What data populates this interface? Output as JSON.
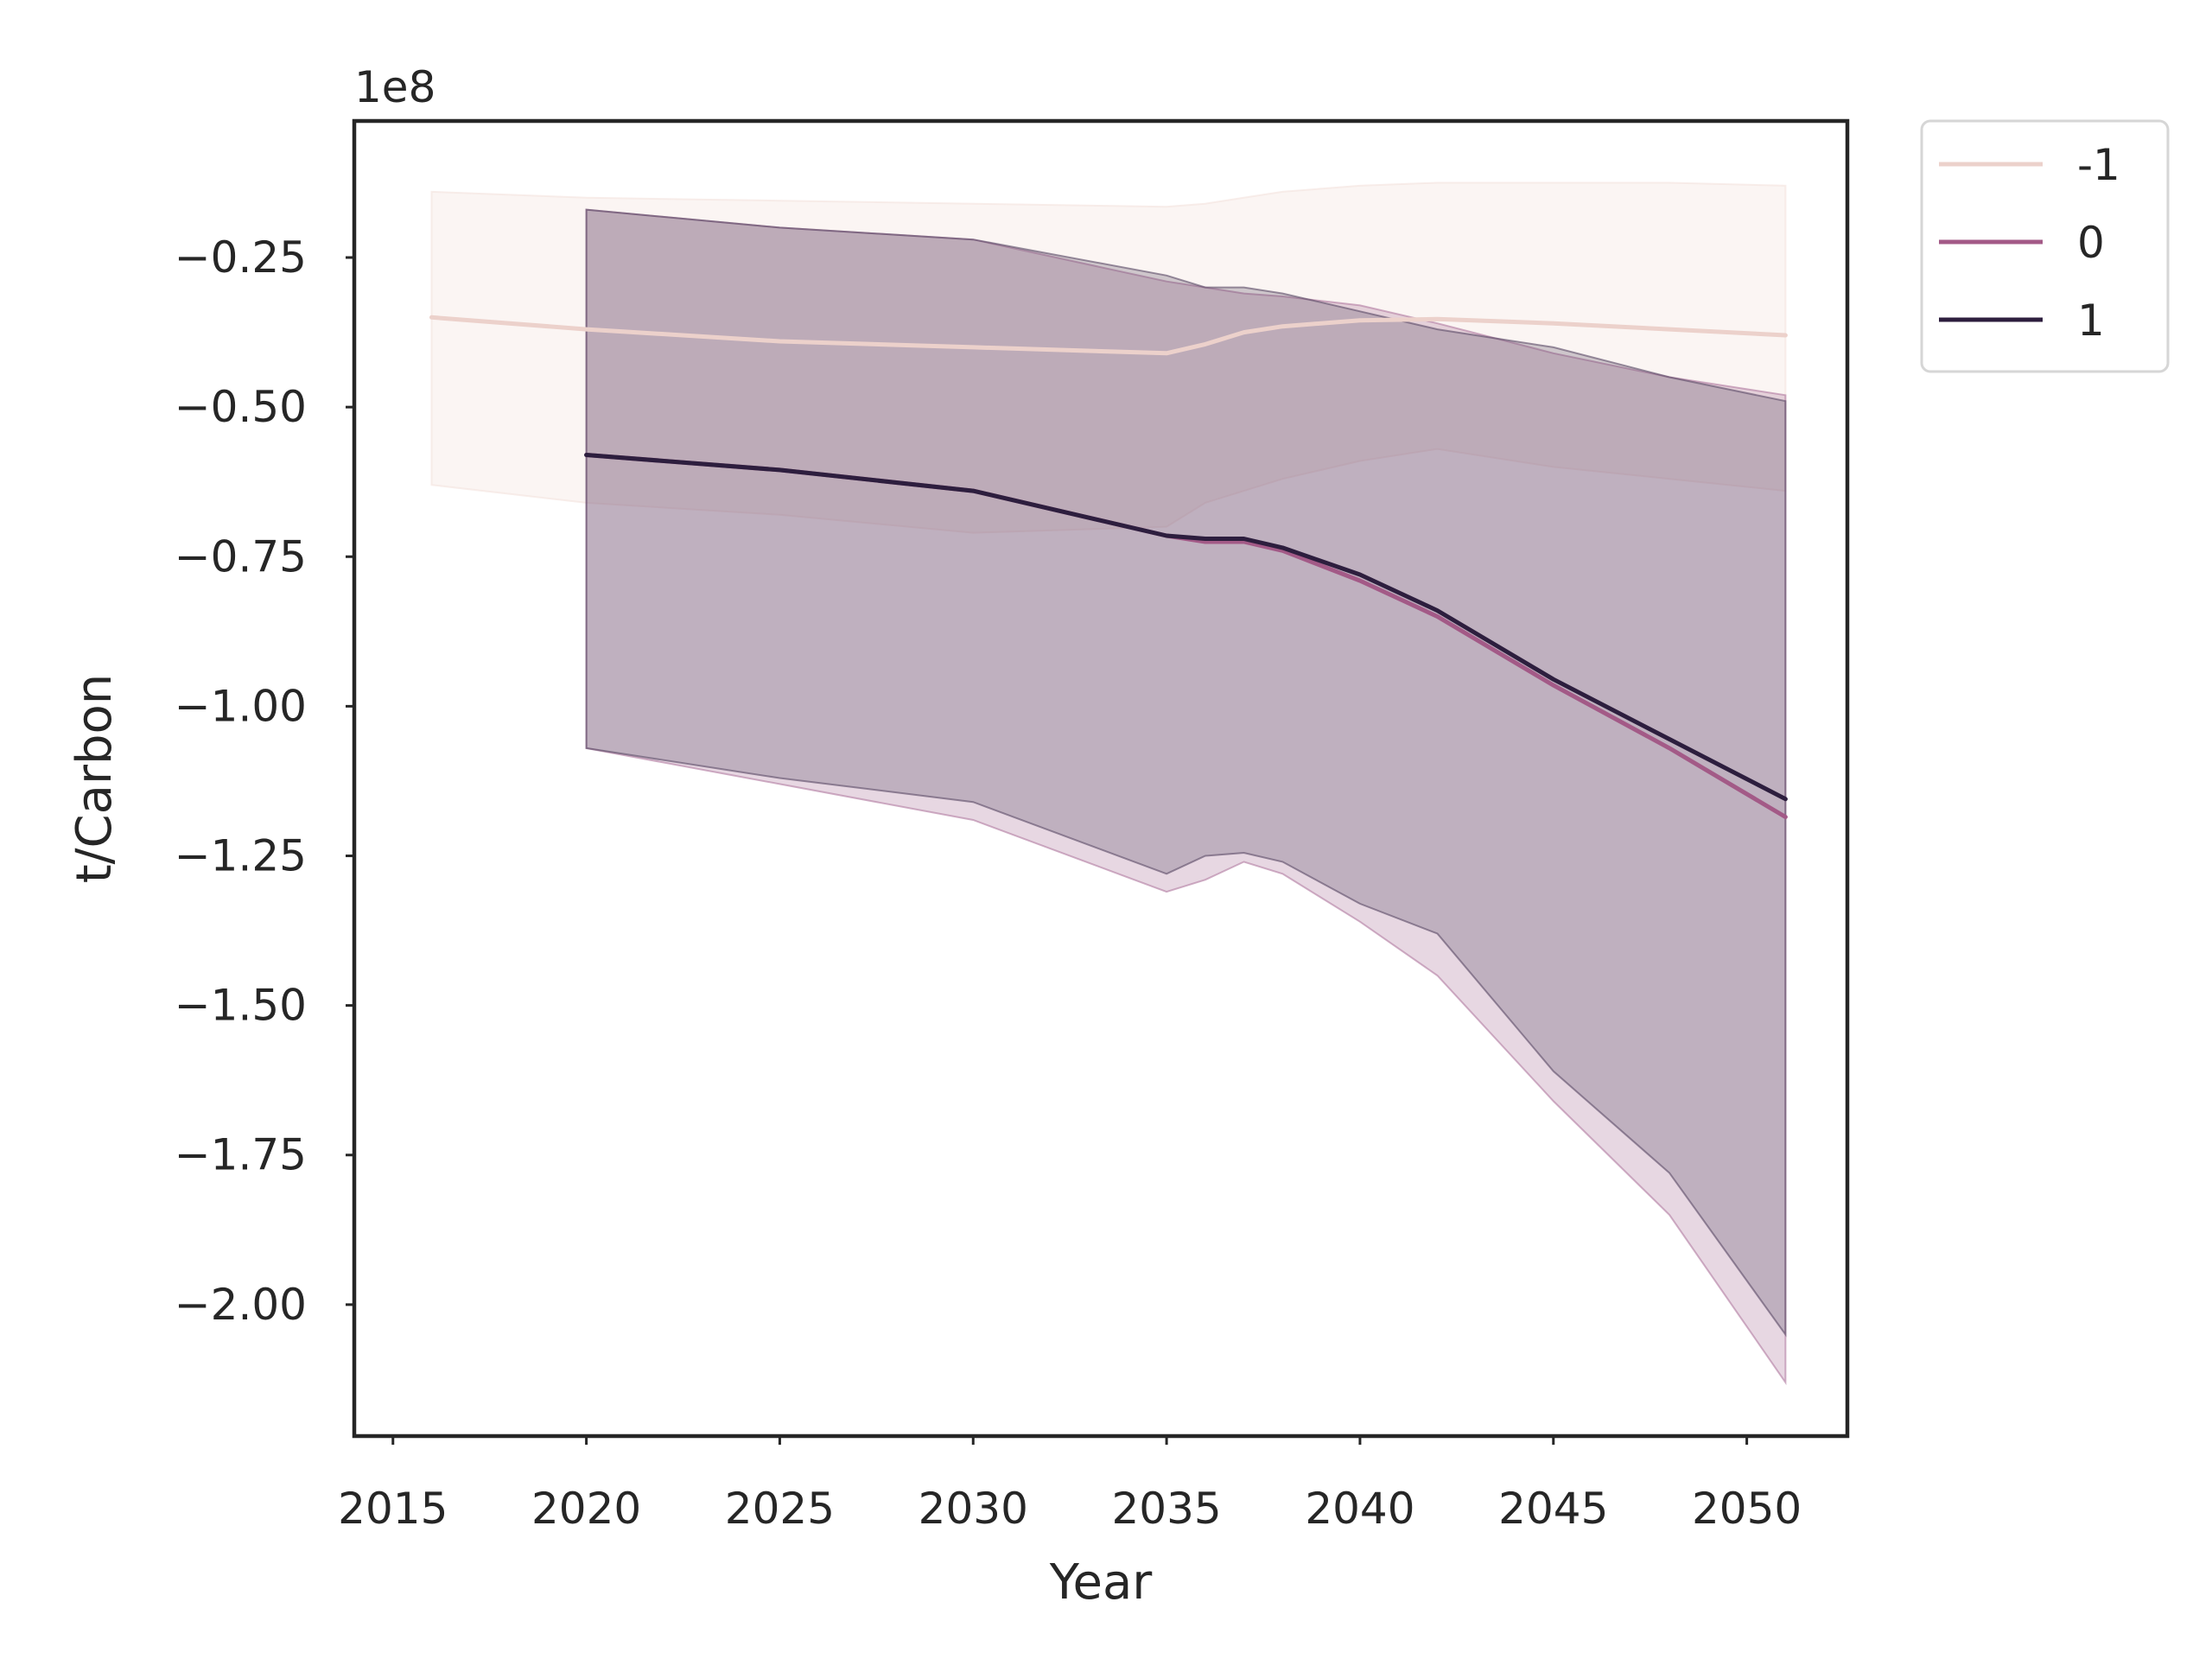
{
  "chart_data": {
    "type": "line",
    "xlabel": "Year",
    "ylabel": "t/Carbon",
    "offset_label": "1e8",
    "xlim": [
      2014,
      2052.6
    ],
    "ylim": [
      -2.2197,
      -0.0218
    ],
    "x_ticks": [
      {
        "value": 2015,
        "label": "2015"
      },
      {
        "value": 2020,
        "label": "2020"
      },
      {
        "value": 2025,
        "label": "2025"
      },
      {
        "value": 2030,
        "label": "2030"
      },
      {
        "value": 2035,
        "label": "2035"
      },
      {
        "value": 2040,
        "label": "2040"
      },
      {
        "value": 2045,
        "label": "2045"
      },
      {
        "value": 2050,
        "label": "2050"
      }
    ],
    "y_ticks": [
      {
        "value": -0.25,
        "label": "−0.25"
      },
      {
        "value": -0.5,
        "label": "−0.50"
      },
      {
        "value": -0.75,
        "label": "−0.75"
      },
      {
        "value": -1.0,
        "label": "−1.00"
      },
      {
        "value": -1.25,
        "label": "−1.25"
      },
      {
        "value": -1.5,
        "label": "−1.50"
      },
      {
        "value": -1.75,
        "label": "−1.75"
      },
      {
        "value": -2.0,
        "label": "−2.00"
      }
    ],
    "grid": false,
    "legend_position": "outside top-right",
    "series": [
      {
        "name": "-1",
        "color": "#ecd1cb",
        "band_color": "#f4e2dd",
        "band_opacity": 0.35,
        "x": [
          2016,
          2020,
          2025,
          2030,
          2035,
          2036,
          2037,
          2038,
          2040,
          2042,
          2045,
          2048,
          2051
        ],
        "y": [
          -0.35,
          -0.37,
          -0.39,
          -0.4,
          -0.41,
          -0.395,
          -0.375,
          -0.365,
          -0.355,
          -0.353,
          -0.36,
          -0.37,
          -0.38
        ],
        "upper": [
          -0.14,
          -0.15,
          -0.155,
          -0.16,
          -0.165,
          -0.16,
          -0.15,
          -0.14,
          -0.13,
          -0.125,
          -0.125,
          -0.125,
          -0.13
        ],
        "lower": [
          -0.63,
          -0.66,
          -0.68,
          -0.71,
          -0.7,
          -0.66,
          -0.64,
          -0.62,
          -0.59,
          -0.57,
          -0.6,
          -0.62,
          -0.64
        ]
      },
      {
        "name": "0",
        "color": "#a35a87",
        "band_color": "#b07aa0",
        "band_opacity": 0.3,
        "x": [
          2020,
          2025,
          2030,
          2035,
          2036,
          2037,
          2038,
          2040,
          2042,
          2045,
          2048,
          2051
        ],
        "y": [
          -0.58,
          -0.605,
          -0.64,
          -0.715,
          -0.725,
          -0.725,
          -0.74,
          -0.79,
          -0.85,
          -0.965,
          -1.07,
          -1.185
        ],
        "upper": [
          -0.17,
          -0.2,
          -0.22,
          -0.29,
          -0.3,
          -0.31,
          -0.315,
          -0.33,
          -0.36,
          -0.41,
          -0.45,
          -0.48
        ],
        "lower": [
          -1.07,
          -1.13,
          -1.19,
          -1.31,
          -1.29,
          -1.26,
          -1.28,
          -1.36,
          -1.45,
          -1.66,
          -1.85,
          -2.13
        ]
      },
      {
        "name": "1",
        "color": "#2d1e3e",
        "band_color": "#5a4a66",
        "band_opacity": 0.28,
        "x": [
          2020,
          2025,
          2030,
          2035,
          2036,
          2037,
          2038,
          2040,
          2042,
          2045,
          2048,
          2051
        ],
        "y": [
          -0.58,
          -0.605,
          -0.64,
          -0.715,
          -0.72,
          -0.72,
          -0.735,
          -0.78,
          -0.84,
          -0.955,
          -1.055,
          -1.155
        ],
        "upper": [
          -0.17,
          -0.2,
          -0.22,
          -0.28,
          -0.3,
          -0.3,
          -0.31,
          -0.34,
          -0.37,
          -0.4,
          -0.45,
          -0.49
        ],
        "lower": [
          -1.07,
          -1.12,
          -1.16,
          -1.28,
          -1.25,
          -1.245,
          -1.26,
          -1.33,
          -1.38,
          -1.61,
          -1.78,
          -2.05
        ]
      }
    ]
  }
}
